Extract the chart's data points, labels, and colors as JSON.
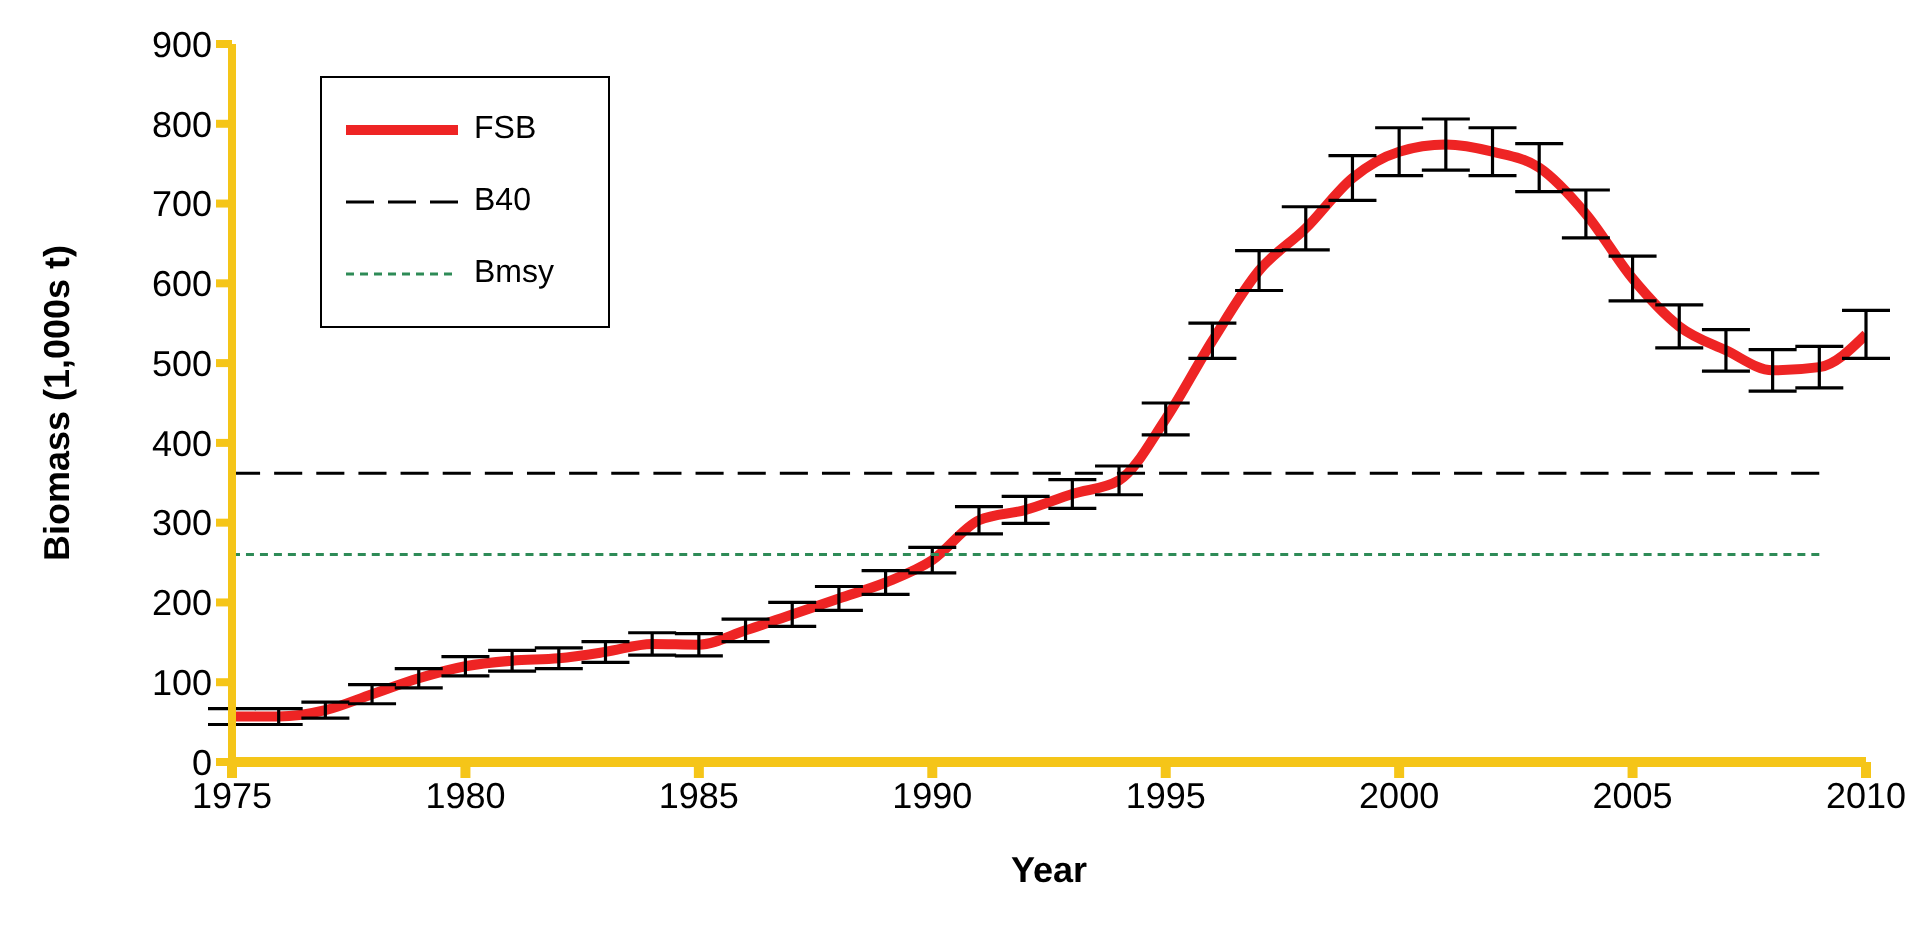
{
  "chart_data": {
    "type": "line",
    "xlabel": "Year",
    "ylabel": "Biomass (1,000s t)",
    "x": [
      1975,
      1976,
      1977,
      1978,
      1979,
      1980,
      1981,
      1982,
      1983,
      1984,
      1985,
      1986,
      1987,
      1988,
      1989,
      1990,
      1991,
      1992,
      1993,
      1994,
      1995,
      1996,
      1997,
      1998,
      1999,
      2000,
      2001,
      2002,
      2003,
      2004,
      2005,
      2006,
      2007,
      2008,
      2009,
      2010
    ],
    "xlim": [
      1975,
      2010
    ],
    "xticks": [
      1975,
      1980,
      1985,
      1990,
      1995,
      2000,
      2005,
      2010
    ],
    "ylim": [
      0,
      900
    ],
    "yticks": [
      0,
      100,
      200,
      300,
      400,
      500,
      600,
      700,
      800,
      900
    ],
    "series": [
      {
        "name": "FSB",
        "color": "#ee2424",
        "line_style": "solid",
        "values": [
          57,
          57,
          65,
          85,
          105,
          120,
          127,
          130,
          138,
          148,
          147,
          165,
          185,
          205,
          225,
          253,
          303,
          316,
          336,
          353,
          430,
          528,
          616,
          669,
          732,
          765,
          774,
          765,
          745,
          687,
          606,
          546,
          516,
          491,
          495,
          536
        ],
        "errors": [
          10,
          10,
          10,
          12,
          12,
          12,
          13,
          13,
          13,
          14,
          14,
          14,
          15,
          15,
          15,
          16,
          17,
          17,
          18,
          18,
          20,
          22,
          25,
          27,
          28,
          30,
          32,
          30,
          30,
          30,
          28,
          27,
          26,
          26,
          26,
          30
        ]
      },
      {
        "name": "B40",
        "color": "#000000",
        "line_style": "dashed",
        "values": [
          362,
          362,
          362,
          362,
          362,
          362,
          362,
          362,
          362,
          362,
          362,
          362,
          362,
          362,
          362,
          362,
          362,
          362,
          362,
          362,
          362,
          362,
          362,
          362,
          362,
          362,
          362,
          362,
          362,
          362,
          362,
          362,
          362,
          362,
          362,
          null
        ]
      },
      {
        "name": "Bmsy",
        "color": "#2e8b57",
        "line_style": "dotted",
        "values": [
          260,
          260,
          260,
          260,
          260,
          260,
          260,
          260,
          260,
          260,
          260,
          260,
          260,
          260,
          260,
          260,
          260,
          260,
          260,
          260,
          260,
          260,
          260,
          260,
          260,
          260,
          260,
          260,
          260,
          260,
          260,
          260,
          260,
          260,
          260,
          null
        ]
      }
    ],
    "marker": "none",
    "grid": false,
    "legend": "top left"
  }
}
